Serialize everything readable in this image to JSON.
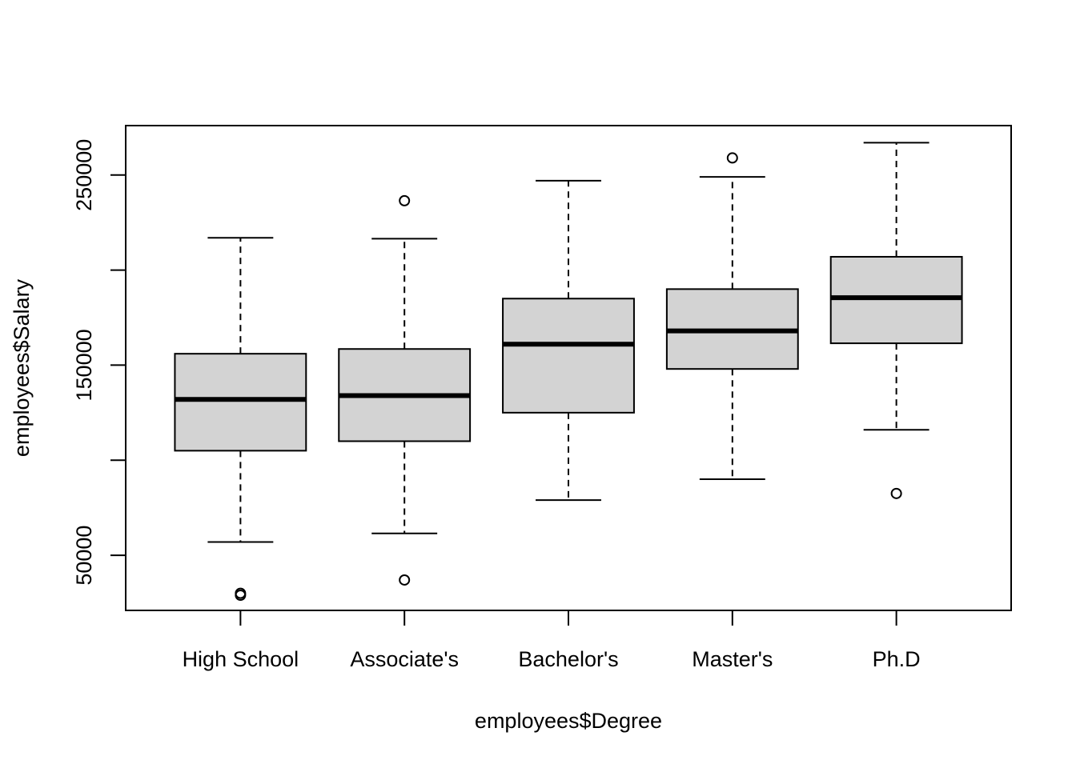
{
  "chart_data": {
    "type": "boxplot",
    "title": "",
    "xlabel": "employees$Degree",
    "ylabel": "employees$Salary",
    "categories": [
      "High School",
      "Associate's",
      "Bachelor's",
      "Master's",
      "Ph.D"
    ],
    "boxes": [
      {
        "whisker_low": 57000,
        "q1": 105000,
        "median": 132000,
        "q3": 156000,
        "whisker_high": 217000,
        "outliers": [
          29000,
          30000
        ]
      },
      {
        "whisker_low": 61500,
        "q1": 110000,
        "median": 134000,
        "q3": 158500,
        "whisker_high": 216500,
        "outliers": [
          37000,
          236500
        ]
      },
      {
        "whisker_low": 79000,
        "q1": 125000,
        "median": 161000,
        "q3": 185000,
        "whisker_high": 247000,
        "outliers": []
      },
      {
        "whisker_low": 90000,
        "q1": 148000,
        "median": 168000,
        "q3": 190000,
        "whisker_high": 249000,
        "outliers": [
          259000
        ]
      },
      {
        "whisker_low": 116000,
        "q1": 161500,
        "median": 185500,
        "q3": 207000,
        "whisker_high": 267000,
        "outliers": [
          82500
        ]
      }
    ],
    "y_ticks": [
      50000,
      100000,
      150000,
      200000,
      250000
    ],
    "y_tick_labels": [
      "50000",
      "",
      "150000",
      "",
      "250000"
    ],
    "ylim": [
      21000,
      276000
    ],
    "box_fill": "#d3d3d3",
    "line_color": "#000000",
    "grid": false,
    "legend": "none"
  }
}
